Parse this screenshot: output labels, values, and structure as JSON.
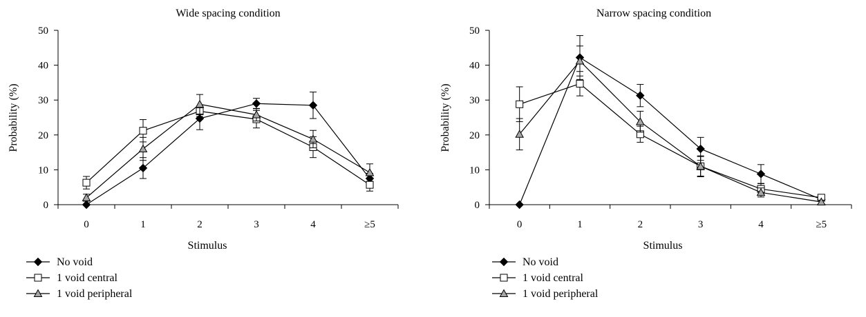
{
  "chart_data": [
    {
      "type": "line",
      "title": "Wide spacing condition",
      "xlabel": "Stimulus",
      "ylabel": "Probability (%)",
      "categories": [
        "0",
        "1",
        "2",
        "3",
        "4",
        "≥5"
      ],
      "ylim": [
        0,
        50
      ],
      "yticks": [
        0,
        10,
        20,
        30,
        40,
        50
      ],
      "grid": false,
      "legend_position": "bottom-left",
      "series": [
        {
          "name": "No void",
          "marker": "diamond",
          "fill": "#000000",
          "values": [
            0,
            10.5,
            24.7,
            29.0,
            28.5,
            7.5
          ],
          "errors": [
            0,
            3.0,
            3.2,
            1.5,
            3.8,
            1.5
          ]
        },
        {
          "name": "1 void central",
          "marker": "square",
          "fill": "#ffffff",
          "values": [
            6.3,
            21.2,
            26.8,
            24.5,
            16.5,
            5.7
          ],
          "errors": [
            1.8,
            3.2,
            1.5,
            2.5,
            3.0,
            1.8
          ]
        },
        {
          "name": "1 void peripheral",
          "marker": "triangle",
          "fill": "#a6a6a6",
          "values": [
            2.0,
            16.0,
            28.8,
            25.8,
            18.8,
            9.2
          ],
          "errors": [
            1.0,
            3.3,
            2.8,
            1.8,
            2.5,
            2.5
          ]
        }
      ]
    },
    {
      "type": "line",
      "title": "Narrow spacing condition",
      "xlabel": "Stimulus",
      "ylabel": "Probability (%)",
      "categories": [
        "0",
        "1",
        "2",
        "3",
        "4",
        "≥5"
      ],
      "ylim": [
        0,
        50
      ],
      "yticks": [
        0,
        10,
        20,
        30,
        40,
        50
      ],
      "grid": false,
      "legend_position": "bottom-left",
      "series": [
        {
          "name": "No void",
          "marker": "diamond",
          "fill": "#000000",
          "values": [
            0,
            42.2,
            31.3,
            16.0,
            8.8,
            1.5
          ],
          "errors": [
            0,
            6.3,
            3.2,
            3.3,
            2.7,
            0.5
          ]
        },
        {
          "name": "1 void central",
          "marker": "square",
          "fill": "#ffffff",
          "values": [
            28.8,
            34.7,
            20.2,
            11.0,
            4.5,
            2.0
          ],
          "errors": [
            5.0,
            3.5,
            2.3,
            3.0,
            1.5,
            0.5
          ]
        },
        {
          "name": "1 void peripheral",
          "marker": "triangle",
          "fill": "#a6a6a6",
          "values": [
            20.2,
            41.2,
            23.8,
            11.0,
            3.5,
            0.8
          ],
          "errors": [
            4.5,
            4.3,
            3.0,
            2.8,
            1.3,
            0.5
          ]
        }
      ]
    }
  ]
}
